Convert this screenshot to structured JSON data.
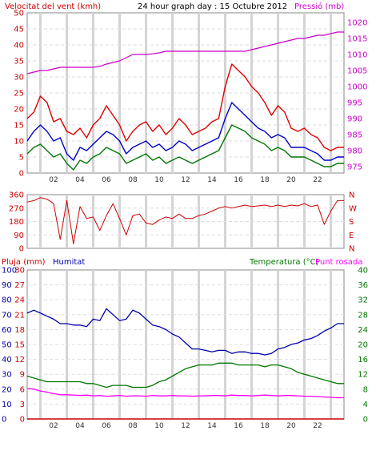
{
  "chart_data": [
    {
      "type": "line",
      "title": "24 hour graph day : 15 Octubre 2012",
      "left_axis_label": "Velocitat del vent (kmh)",
      "right_axis_label": "Pressió (mb)",
      "left_ylim": [
        0,
        50
      ],
      "left_ticks": [
        "0",
        "5",
        "10",
        "15",
        "20",
        "25",
        "30",
        "35",
        "40",
        "45",
        "50"
      ],
      "right_ylim": [
        973,
        1023
      ],
      "right_ticks": [
        "975",
        "980",
        "985",
        "990",
        "995",
        "1000",
        "1005",
        "1010",
        "1015",
        "1020"
      ],
      "x_ticks": [
        "02",
        "04",
        "06",
        "08",
        "10",
        "12",
        "14",
        "16",
        "18",
        "20",
        "22"
      ],
      "x": [
        0,
        0.5,
        1,
        1.5,
        2,
        2.5,
        3,
        3.5,
        4,
        4.5,
        5,
        5.5,
        6,
        6.5,
        7,
        7.5,
        8,
        8.5,
        9,
        9.5,
        10,
        10.5,
        11,
        11.5,
        12,
        12.5,
        13,
        13.5,
        14,
        14.5,
        15,
        15.5,
        16,
        16.5,
        17,
        17.5,
        18,
        18.5,
        19,
        19.5,
        20,
        20.5,
        21,
        21.5,
        22,
        22.5,
        23,
        23.5
      ],
      "series": [
        {
          "name": "gust",
          "color": "#e00000",
          "values": [
            17,
            19,
            24,
            22,
            16,
            17,
            13,
            12,
            14,
            11,
            15,
            17,
            21,
            18,
            15,
            10,
            13,
            15,
            16,
            13,
            15,
            12,
            14,
            17,
            15,
            12,
            13,
            14,
            16,
            17,
            27,
            34,
            32,
            30,
            27,
            25,
            22,
            18,
            21,
            19,
            14,
            13,
            14,
            12,
            11,
            8,
            7,
            8
          ]
        },
        {
          "name": "average",
          "color": "#0000cc",
          "values": [
            10,
            13,
            15,
            13,
            10,
            11,
            6,
            4,
            8,
            7,
            9,
            11,
            13,
            12,
            10,
            6,
            8,
            9,
            10,
            8,
            9,
            7,
            8,
            10,
            9,
            7,
            8,
            9,
            10,
            11,
            17,
            22,
            20,
            18,
            16,
            14,
            13,
            11,
            12,
            11,
            8,
            8,
            8,
            7,
            6,
            4,
            4,
            5
          ]
        },
        {
          "name": "min",
          "color": "#007700",
          "values": [
            6,
            8,
            9,
            7,
            5,
            6,
            3,
            1,
            4,
            3,
            5,
            6,
            8,
            7,
            6,
            3,
            4,
            5,
            6,
            4,
            5,
            3,
            4,
            5,
            4,
            3,
            4,
            5,
            6,
            7,
            11,
            15,
            14,
            13,
            11,
            10,
            9,
            7,
            8,
            7,
            5,
            5,
            5,
            4,
            3,
            2,
            2,
            3
          ]
        },
        {
          "name": "pressure",
          "color": "#cc00cc",
          "axis": "right",
          "values": [
            1004,
            1004.5,
            1005,
            1005,
            1005.5,
            1006,
            1006,
            1006,
            1006,
            1006,
            1006,
            1006.3,
            1007,
            1007.5,
            1008,
            1009,
            1010,
            1010,
            1010,
            1010.2,
            1010.5,
            1011,
            1011,
            1011,
            1011,
            1011,
            1011,
            1011,
            1011,
            1011,
            1011,
            1011,
            1011,
            1011,
            1011.5,
            1012,
            1012.5,
            1013,
            1013.5,
            1014,
            1014.5,
            1015,
            1015,
            1015.5,
            1016,
            1016,
            1016.5,
            1017
          ]
        }
      ]
    },
    {
      "type": "line",
      "left_ylim": [
        0,
        360
      ],
      "left_ticks": [
        "0",
        "90",
        "180",
        "270",
        "360"
      ],
      "right_ticks": [
        "N",
        "E",
        "S",
        "W",
        "N"
      ],
      "x": [
        0,
        0.5,
        1,
        1.5,
        2,
        2.5,
        3,
        3.5,
        4,
        4.5,
        5,
        5.5,
        6,
        6.5,
        7,
        7.5,
        8,
        8.5,
        9,
        9.5,
        10,
        10.5,
        11,
        11.5,
        12,
        12.5,
        13,
        13.5,
        14,
        14.5,
        15,
        15.5,
        16,
        16.5,
        17,
        17.5,
        18,
        18.5,
        19,
        19.5,
        20,
        20.5,
        21,
        21.5,
        22,
        22.5,
        23,
        23.5
      ],
      "series": [
        {
          "name": "direction",
          "color": "#cc0000",
          "values": [
            310,
            320,
            340,
            330,
            300,
            60,
            320,
            30,
            280,
            200,
            210,
            120,
            220,
            300,
            200,
            90,
            220,
            230,
            170,
            160,
            190,
            210,
            200,
            230,
            200,
            200,
            220,
            230,
            250,
            270,
            280,
            270,
            280,
            290,
            280,
            285,
            290,
            280,
            290,
            280,
            290,
            285,
            300,
            280,
            290,
            160,
            250,
            320
          ]
        }
      ]
    },
    {
      "type": "line",
      "left_axis_label": "Pluja (mm)",
      "left_axis_label_2": "Humitat",
      "right_axis_label": "Temperatura (°C)",
      "right_axis_label_2": "Punt rosada",
      "rain_ylim": [
        0,
        30
      ],
      "rain_ticks": [
        "0",
        "3",
        "6",
        "9",
        "12",
        "15",
        "18",
        "21",
        "24",
        "27",
        "30"
      ],
      "humidity_ylim": [
        0,
        100
      ],
      "humidity_ticks": [
        "0",
        "10",
        "20",
        "30",
        "40",
        "50",
        "60",
        "70",
        "80",
        "90",
        "100"
      ],
      "temp_ylim": [
        0,
        40
      ],
      "temp_ticks": [
        "0",
        "4",
        "8",
        "12",
        "16",
        "20",
        "24",
        "28",
        "32",
        "36",
        "40"
      ],
      "x_ticks": [
        "02",
        "04",
        "06",
        "08",
        "10",
        "12",
        "14",
        "16",
        "18",
        "20",
        "22"
      ],
      "x": [
        0,
        0.5,
        1,
        1.5,
        2,
        2.5,
        3,
        3.5,
        4,
        4.5,
        5,
        5.5,
        6,
        6.5,
        7,
        7.5,
        8,
        8.5,
        9,
        9.5,
        10,
        10.5,
        11,
        11.5,
        12,
        12.5,
        13,
        13.5,
        14,
        14.5,
        15,
        15.5,
        16,
        16.5,
        17,
        17.5,
        18,
        18.5,
        19,
        19.5,
        20,
        20.5,
        21,
        21.5,
        22,
        22.5,
        23,
        23.5
      ],
      "series": [
        {
          "name": "Humitat",
          "color": "#0000aa",
          "axis": "humidity",
          "values": [
            71,
            73,
            71,
            69,
            67,
            64,
            64,
            63,
            63,
            62,
            67,
            66,
            74,
            70,
            66,
            67,
            73,
            71,
            67,
            63,
            62,
            60,
            57,
            55,
            51,
            47,
            47,
            46,
            45,
            46,
            46,
            44,
            45,
            45,
            44,
            44,
            43,
            44,
            47,
            48,
            50,
            51,
            53,
            54,
            56,
            59,
            61,
            64
          ]
        },
        {
          "name": "Temperatura",
          "color": "#007700",
          "axis": "temp",
          "values": [
            11.5,
            11,
            10.5,
            10,
            10,
            10,
            10,
            10,
            10,
            9.5,
            9.5,
            9,
            8.5,
            9,
            9,
            9,
            8.5,
            8.5,
            8.5,
            9,
            10,
            10.5,
            11.5,
            12.5,
            13.5,
            14,
            14.5,
            14.5,
            14.5,
            15,
            15,
            15,
            14.5,
            14.5,
            14.5,
            14.5,
            14,
            14.5,
            14.5,
            14,
            13.5,
            12.5,
            12,
            11.5,
            11,
            10.5,
            10,
            9.5
          ]
        },
        {
          "name": "Punt rosada",
          "color": "#ff00ff",
          "axis": "temp",
          "values": [
            8.2,
            8,
            7.5,
            7.2,
            6.8,
            6.5,
            6.5,
            6.4,
            6.3,
            6.4,
            6.2,
            6.3,
            6.1,
            6.2,
            6.3,
            6.1,
            6.2,
            6.2,
            6.1,
            6.3,
            6.2,
            6.2,
            6.3,
            6.2,
            6.2,
            6.1,
            6.2,
            6.2,
            6.3,
            6.3,
            6.2,
            6.4,
            6.3,
            6.3,
            6.2,
            6.3,
            6.4,
            6.3,
            6.2,
            6.3,
            6.3,
            6.2,
            6.1,
            6.1,
            6,
            5.9,
            5.8,
            5.7
          ]
        },
        {
          "name": "rain",
          "color": "#cc0000",
          "axis": "rain",
          "values": [
            0,
            0,
            0,
            0,
            0,
            0,
            0,
            0,
            0,
            0,
            0,
            0,
            0,
            0,
            0,
            0,
            0,
            0,
            0,
            0,
            0,
            0,
            0,
            0,
            0,
            0,
            0,
            0,
            0,
            0,
            0,
            0,
            0,
            0,
            0,
            0,
            0,
            0,
            0,
            0,
            0,
            0,
            0,
            0,
            0,
            0,
            0,
            0
          ]
        }
      ]
    }
  ]
}
